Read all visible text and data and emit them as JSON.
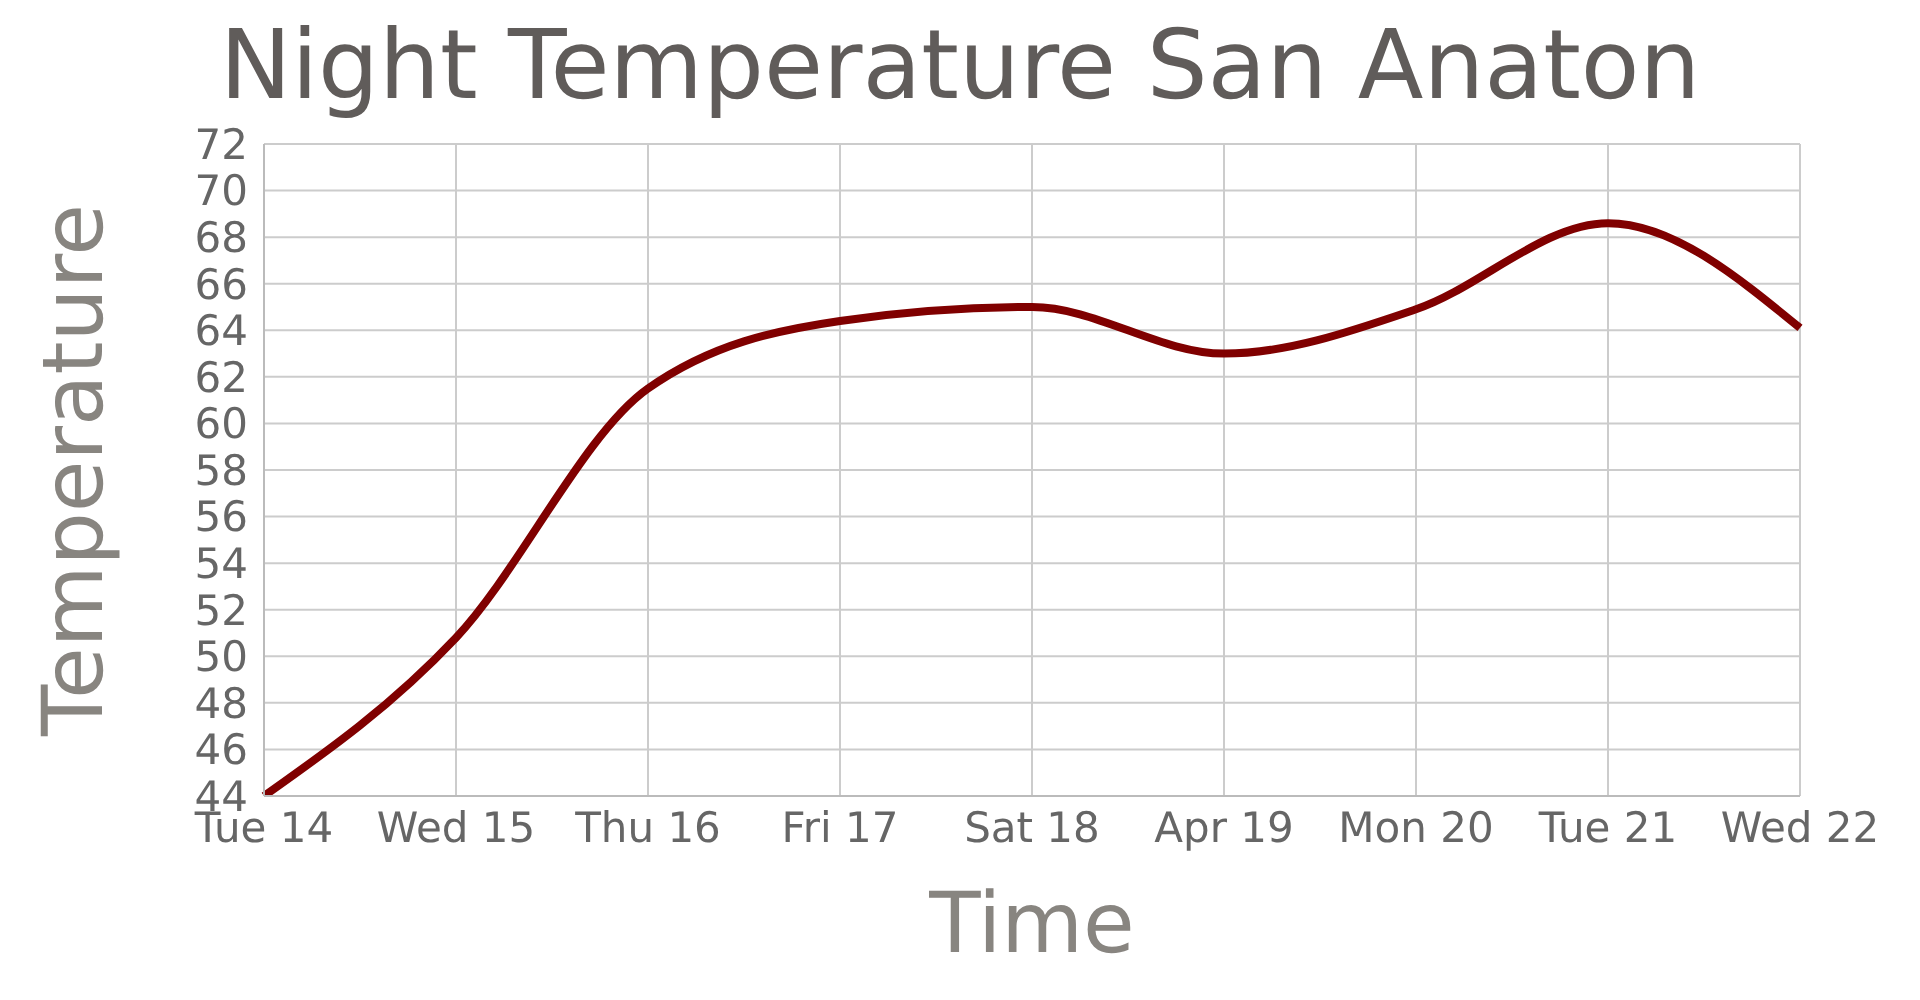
{
  "chart_data": {
    "type": "line",
    "title": "Night Temperature San Anaton",
    "xlabel": "Time",
    "ylabel": "Temperature",
    "categories": [
      "Tue 14",
      "Wed 15",
      "Thu 16",
      "Fri 17",
      "Sat 18",
      "Apr 19",
      "Mon 20",
      "Tue 21",
      "Wed 22"
    ],
    "series": [
      {
        "color": "#800000",
        "values": [
          44.0,
          50.8,
          61.5,
          64.4,
          65.0,
          63.0,
          64.9,
          68.6,
          64.1
        ]
      }
    ],
    "ylim": [
      44,
      72
    ],
    "yticks": [
      44,
      46,
      48,
      50,
      52,
      54,
      56,
      58,
      60,
      62,
      64,
      66,
      68,
      70,
      72
    ],
    "grid": true,
    "legend": false,
    "marker": "none",
    "line_style": "solid"
  }
}
